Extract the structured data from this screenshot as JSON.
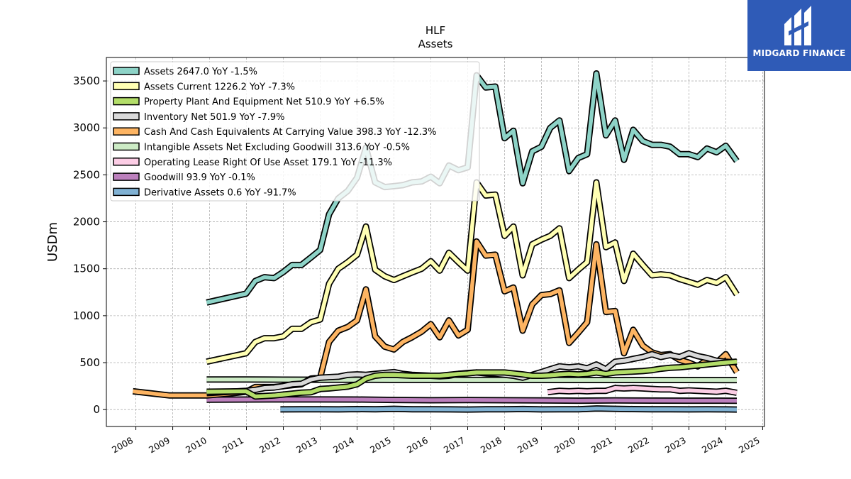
{
  "chart_data": {
    "type": "line",
    "title": "HLF",
    "subtitle": "Assets",
    "ylabel": "USDm",
    "ylim": [
      -180,
      3750
    ],
    "xlim": [
      2007.2,
      2025.05
    ],
    "yticks": [
      0,
      500,
      1000,
      1500,
      2000,
      2500,
      3000,
      3500
    ],
    "xticks": [
      2008,
      2009,
      2010,
      2011,
      2012,
      2013,
      2014,
      2015,
      2016,
      2017,
      2018,
      2019,
      2020,
      2021,
      2022,
      2023,
      2024,
      2025
    ],
    "grid": true,
    "legend_position": "top-left",
    "series": [
      {
        "name": "Assets",
        "legend_label": "Assets  2647.0 YoY -1.5%",
        "color": "#8dd3c7",
        "x": [
          2009.92,
          2010.99,
          2011.24,
          2011.49,
          2011.75,
          2012.0,
          2012.24,
          2012.49,
          2012.75,
          2013.0,
          2013.24,
          2013.49,
          2013.75,
          2014.0,
          2014.24,
          2014.49,
          2014.75,
          2015.0,
          2015.24,
          2015.49,
          2015.75,
          2016.0,
          2016.24,
          2016.49,
          2016.75,
          2017.0,
          2017.24,
          2017.49,
          2017.75,
          2018.0,
          2018.24,
          2018.49,
          2018.75,
          2019.0,
          2019.24,
          2019.49,
          2019.75,
          2020.0,
          2020.24,
          2020.49,
          2020.75,
          2021.0,
          2021.24,
          2021.49,
          2021.75,
          2022.0,
          2022.24,
          2022.49,
          2022.75,
          2023.0,
          2023.24,
          2023.49,
          2023.75,
          2024.0,
          2024.3
        ],
        "values": [
          1140,
          1235,
          1370,
          1410,
          1400,
          1465,
          1540,
          1540,
          1620,
          1700,
          2080,
          2250,
          2330,
          2470,
          2790,
          2420,
          2370,
          2380,
          2390,
          2420,
          2430,
          2480,
          2410,
          2600,
          2550,
          2580,
          3560,
          3430,
          3440,
          2890,
          2970,
          2410,
          2750,
          2800,
          3000,
          3080,
          2540,
          2680,
          2720,
          3580,
          2920,
          3080,
          2660,
          2980,
          2860,
          2820,
          2820,
          2800,
          2720,
          2720,
          2690,
          2780,
          2740,
          2810,
          2647
        ]
      },
      {
        "name": "Assets Current",
        "legend_label": "Assets Current  1226.2 YoY -7.3%",
        "color": "#ffffb3",
        "x": [
          2009.92,
          2010.99,
          2011.24,
          2011.49,
          2011.75,
          2012.0,
          2012.24,
          2012.49,
          2012.75,
          2013.0,
          2013.24,
          2013.49,
          2013.75,
          2014.0,
          2014.24,
          2014.49,
          2014.75,
          2015.0,
          2015.24,
          2015.49,
          2015.75,
          2016.0,
          2016.24,
          2016.49,
          2016.75,
          2017.0,
          2017.24,
          2017.49,
          2017.75,
          2018.0,
          2018.24,
          2018.49,
          2018.75,
          2019.0,
          2019.24,
          2019.49,
          2019.75,
          2020.0,
          2020.24,
          2020.49,
          2020.75,
          2021.0,
          2021.24,
          2021.49,
          2021.75,
          2022.0,
          2022.24,
          2022.49,
          2022.75,
          2023.0,
          2023.24,
          2023.49,
          2023.75,
          2024.0,
          2024.3
        ],
        "values": [
          510,
          600,
          720,
          760,
          760,
          780,
          860,
          860,
          930,
          960,
          1340,
          1500,
          1570,
          1650,
          1950,
          1490,
          1420,
          1380,
          1420,
          1460,
          1500,
          1580,
          1480,
          1670,
          1570,
          1480,
          2420,
          2280,
          2290,
          1850,
          1950,
          1430,
          1760,
          1810,
          1850,
          1930,
          1400,
          1490,
          1570,
          2420,
          1730,
          1780,
          1370,
          1660,
          1540,
          1430,
          1440,
          1430,
          1390,
          1360,
          1330,
          1380,
          1350,
          1410,
          1226
        ]
      },
      {
        "name": "Property Plant And Equipment Net",
        "legend_label": "Property Plant And Equipment Net  510.9 YoY +6.5%",
        "color": "#b3de69",
        "x": [
          2009.92,
          2010.99,
          2011.24,
          2011.49,
          2011.75,
          2012.0,
          2012.24,
          2012.49,
          2012.75,
          2013.0,
          2013.24,
          2013.49,
          2013.75,
          2014.0,
          2014.24,
          2014.49,
          2014.75,
          2015.0,
          2015.24,
          2015.49,
          2015.75,
          2016.0,
          2016.24,
          2016.49,
          2016.75,
          2017.0,
          2017.24,
          2017.49,
          2017.75,
          2018.0,
          2018.24,
          2018.49,
          2018.75,
          2019.0,
          2019.24,
          2019.49,
          2019.75,
          2020.0,
          2020.24,
          2020.49,
          2020.75,
          2021.0,
          2021.24,
          2021.49,
          2021.75,
          2022.0,
          2022.24,
          2022.49,
          2022.75,
          2023.0,
          2023.24,
          2023.49,
          2023.75,
          2024.0,
          2024.3
        ],
        "values": [
          190,
          195,
          140,
          145,
          150,
          160,
          170,
          180,
          185,
          220,
          225,
          235,
          245,
          270,
          330,
          360,
          370,
          370,
          365,
          360,
          360,
          360,
          360,
          370,
          380,
          385,
          395,
          395,
          395,
          395,
          385,
          375,
          360,
          360,
          365,
          375,
          380,
          375,
          380,
          395,
          380,
          395,
          400,
          405,
          410,
          420,
          435,
          445,
          450,
          460,
          470,
          480,
          490,
          500,
          511
        ]
      },
      {
        "name": "Inventory Net",
        "legend_label": "Inventory Net  501.9 YoY -7.9%",
        "color": "#d9d9d9",
        "x": [
          2009.92,
          2010.99,
          2011.24,
          2011.49,
          2011.75,
          2012.0,
          2012.24,
          2012.49,
          2012.75,
          2013.0,
          2013.24,
          2013.49,
          2013.75,
          2014.0,
          2014.24,
          2014.49,
          2014.75,
          2015.0,
          2015.24,
          2015.49,
          2015.75,
          2016.0,
          2016.24,
          2016.49,
          2016.75,
          2017.0,
          2017.24,
          2017.49,
          2017.75,
          2018.0,
          2018.24,
          2018.49,
          2018.75,
          2019.0,
          2019.24,
          2019.49,
          2019.75,
          2020.0,
          2020.24,
          2020.49,
          2020.75,
          2021.0,
          2021.24,
          2021.49,
          2021.75,
          2022.0,
          2022.24,
          2022.49,
          2022.75,
          2023.0,
          2023.24,
          2023.49,
          2023.75,
          2024.0,
          2024.3
        ],
        "values": [
          175,
          200,
          210,
          230,
          235,
          250,
          270,
          275,
          320,
          340,
          345,
          350,
          370,
          375,
          370,
          380,
          390,
          400,
          380,
          370,
          365,
          360,
          355,
          360,
          380,
          390,
          395,
          385,
          380,
          370,
          360,
          340,
          370,
          400,
          430,
          460,
          450,
          460,
          440,
          480,
          430,
          510,
          520,
          540,
          560,
          590,
          560,
          580,
          560,
          600,
          570,
          550,
          520,
          510,
          502
        ]
      },
      {
        "name": "Cash And Cash Equivalents At Carrying Value",
        "legend_label": "Cash And Cash Equivalents At Carrying Value  398.3 YoY -12.3%",
        "color": "#fdb462",
        "x": [
          2007.92,
          2008.92,
          2009.92,
          2010.49,
          2010.75,
          2010.99,
          2011.24,
          2011.49,
          2011.75,
          2012.0,
          2012.24,
          2012.49,
          2012.75,
          2013.0,
          2013.24,
          2013.49,
          2013.75,
          2014.0,
          2014.24,
          2014.49,
          2014.75,
          2015.0,
          2015.24,
          2015.49,
          2015.75,
          2016.0,
          2016.24,
          2016.49,
          2016.75,
          2017.0,
          2017.24,
          2017.49,
          2017.75,
          2018.0,
          2018.24,
          2018.49,
          2018.75,
          2019.0,
          2019.24,
          2019.49,
          2019.75,
          2020.0,
          2020.24,
          2020.49,
          2020.75,
          2021.0,
          2021.24,
          2021.49,
          2021.75,
          2022.0,
          2022.24,
          2022.49,
          2022.75,
          2023.0,
          2023.24,
          2023.49,
          2023.75,
          2024.0,
          2024.3
        ],
        "values": [
          195,
          150,
          150,
          170,
          180,
          190,
          240,
          240,
          240,
          250,
          260,
          270,
          330,
          340,
          720,
          840,
          880,
          950,
          1280,
          780,
          670,
          640,
          720,
          770,
          830,
          910,
          770,
          950,
          790,
          850,
          1790,
          1640,
          1650,
          1260,
          1300,
          840,
          1120,
          1220,
          1230,
          1270,
          710,
          820,
          930,
          1760,
          1040,
          1050,
          600,
          850,
          680,
          610,
          580,
          590,
          530,
          500,
          460,
          530,
          500,
          590,
          398
        ]
      },
      {
        "name": "Intangible Assets Net Excluding Goodwill",
        "legend_label": "Intangible Assets Net Excluding Goodwill  313.6 YoY -0.5%",
        "color": "#ccebc5",
        "x": [
          2009.92,
          2011.0,
          2012.0,
          2013.0,
          2014.0,
          2015.0,
          2016.0,
          2017.0,
          2018.0,
          2019.0,
          2020.0,
          2021.0,
          2022.0,
          2023.0,
          2024.3
        ],
        "values": [
          320,
          320,
          319,
          318,
          318,
          317,
          317,
          316,
          316,
          316,
          315,
          315,
          315,
          315,
          314
        ]
      },
      {
        "name": "Operating Lease Right Of Use Asset",
        "legend_label": "Operating Lease Right Of Use Asset  179.1 YoY -11.3%",
        "color": "#fccde5",
        "x": [
          2019.17,
          2019.49,
          2019.75,
          2020.0,
          2020.24,
          2020.49,
          2020.75,
          2021.0,
          2021.24,
          2021.49,
          2021.75,
          2022.0,
          2022.24,
          2022.49,
          2022.75,
          2023.0,
          2023.24,
          2023.49,
          2023.75,
          2024.0,
          2024.3
        ],
        "values": [
          185,
          200,
          195,
          200,
          195,
          200,
          200,
          230,
          225,
          230,
          225,
          220,
          215,
          215,
          200,
          205,
          200,
          195,
          190,
          200,
          179
        ]
      },
      {
        "name": "Goodwill",
        "legend_label": "Goodwill  93.9 YoY -0.1%",
        "color": "#bc80bd",
        "x": [
          2009.92,
          2011.0,
          2012.0,
          2013.0,
          2014.0,
          2015.0,
          2016.0,
          2017.0,
          2018.0,
          2019.0,
          2020.0,
          2021.0,
          2022.0,
          2023.0,
          2024.3
        ],
        "values": [
          105,
          107,
          108,
          108,
          107,
          103,
          100,
          101,
          100,
          98,
          95,
          97,
          96,
          95,
          94
        ]
      },
      {
        "name": "Derivative Assets",
        "legend_label": "Derivative Assets  0.6 YoY -91.7%",
        "color": "#80b1d3",
        "x": [
          2011.92,
          2012.5,
          2013.0,
          2013.5,
          2014.0,
          2014.5,
          2015.0,
          2015.5,
          2016.0,
          2016.5,
          2017.0,
          2017.5,
          2018.0,
          2018.5,
          2019.0,
          2019.5,
          2020.0,
          2020.5,
          2021.0,
          2021.5,
          2022.0,
          2022.5,
          2023.0,
          2023.5,
          2024.0,
          2024.3
        ],
        "values": [
          2,
          3,
          4,
          2,
          5,
          3,
          8,
          4,
          3,
          2,
          1,
          4,
          3,
          6,
          2,
          3,
          4,
          12,
          8,
          5,
          4,
          3,
          2,
          3,
          2,
          0.6
        ]
      }
    ]
  },
  "logo": {
    "name": "MIDGARD FINANCE"
  }
}
